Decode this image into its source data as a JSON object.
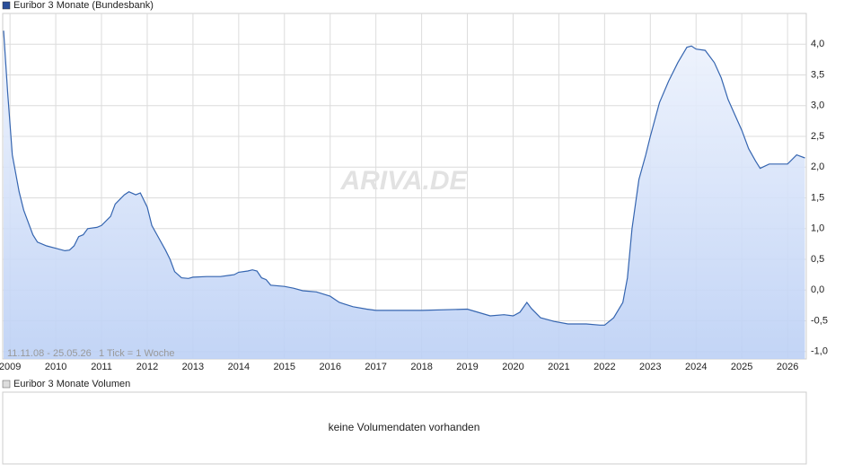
{
  "chart_data": {
    "type": "line",
    "title": "Euribor 3 Monate (Bundesbank)",
    "annotations": [
      "11.11.08 - 25.05.26",
      "1 Tick = 1 Woche"
    ],
    "watermark": "ARIVA.DE",
    "x": [
      2008.86,
      2008.95,
      2009.05,
      2009.2,
      2009.3,
      2009.5,
      2009.6,
      2009.8,
      2010.0,
      2010.2,
      2010.3,
      2010.4,
      2010.5,
      2010.6,
      2010.7,
      2010.9,
      2011.0,
      2011.2,
      2011.3,
      2011.5,
      2011.6,
      2011.75,
      2011.85,
      2012.0,
      2012.1,
      2012.25,
      2012.4,
      2012.5,
      2012.6,
      2012.75,
      2012.9,
      2013.0,
      2013.3,
      2013.6,
      2013.9,
      2014.0,
      2014.2,
      2014.3,
      2014.4,
      2014.5,
      2014.6,
      2014.7,
      2015.0,
      2015.2,
      2015.4,
      2015.7,
      2016.0,
      2016.2,
      2016.5,
      2016.8,
      2017.0,
      2018.0,
      2019.0,
      2019.5,
      2019.8,
      2020.0,
      2020.15,
      2020.3,
      2020.4,
      2020.6,
      2020.9,
      2021.2,
      2021.6,
      2021.9,
      2022.0,
      2022.2,
      2022.4,
      2022.5,
      2022.6,
      2022.75,
      2022.9,
      2023.0,
      2023.2,
      2023.4,
      2023.6,
      2023.8,
      2023.9,
      2024.0,
      2024.2,
      2024.4,
      2024.55,
      2024.7,
      2024.85,
      2025.0,
      2025.15,
      2025.3,
      2025.4,
      2025.6,
      2025.8,
      2026.0,
      2026.2,
      2026.38
    ],
    "series": [
      {
        "name": "Euribor 3 Monate (Bundesbank)",
        "color": "#3565b0",
        "values": [
          4.22,
          3.2,
          2.2,
          1.6,
          1.3,
          0.9,
          0.78,
          0.72,
          0.68,
          0.64,
          0.65,
          0.72,
          0.87,
          0.9,
          1.0,
          1.02,
          1.05,
          1.2,
          1.4,
          1.55,
          1.6,
          1.55,
          1.58,
          1.35,
          1.05,
          0.85,
          0.65,
          0.5,
          0.3,
          0.2,
          0.19,
          0.21,
          0.22,
          0.22,
          0.25,
          0.29,
          0.31,
          0.33,
          0.31,
          0.2,
          0.17,
          0.08,
          0.06,
          0.03,
          -0.01,
          -0.03,
          -0.1,
          -0.2,
          -0.27,
          -0.31,
          -0.33,
          -0.33,
          -0.31,
          -0.42,
          -0.4,
          -0.42,
          -0.36,
          -0.2,
          -0.3,
          -0.45,
          -0.51,
          -0.55,
          -0.55,
          -0.57,
          -0.57,
          -0.45,
          -0.2,
          0.2,
          1.0,
          1.8,
          2.2,
          2.5,
          3.05,
          3.4,
          3.7,
          3.95,
          3.97,
          3.92,
          3.9,
          3.7,
          3.45,
          3.1,
          2.85,
          2.6,
          2.3,
          2.1,
          1.98,
          2.05,
          2.05,
          2.05,
          2.2,
          2.15
        ]
      }
    ],
    "xlim": [
      2008.84,
      2026.41
    ],
    "xticks": [
      2009,
      2010,
      2011,
      2012,
      2013,
      2014,
      2015,
      2016,
      2017,
      2018,
      2019,
      2020,
      2021,
      2022,
      2023,
      2024,
      2025,
      2026
    ],
    "ylim": [
      -1.12,
      4.5
    ],
    "yticks": [
      {
        "value": -1,
        "label": "-1,0"
      },
      {
        "value": -0.5,
        "label": "-0,5"
      },
      {
        "value": 0,
        "label": "0,0"
      },
      {
        "value": 0.5,
        "label": "0,5"
      },
      {
        "value": 1,
        "label": "1,0"
      },
      {
        "value": 1.5,
        "label": "1,5"
      },
      {
        "value": 2,
        "label": "2,0"
      },
      {
        "value": 2.5,
        "label": "2,5"
      },
      {
        "value": 3,
        "label": "3,0"
      },
      {
        "value": 3.5,
        "label": "3,5"
      },
      {
        "value": 4,
        "label": "4,0"
      }
    ],
    "grid": true
  },
  "volume_panel": {
    "title": "Euribor 3 Monate Volumen",
    "message": "keine Volumendaten vorhanden"
  }
}
